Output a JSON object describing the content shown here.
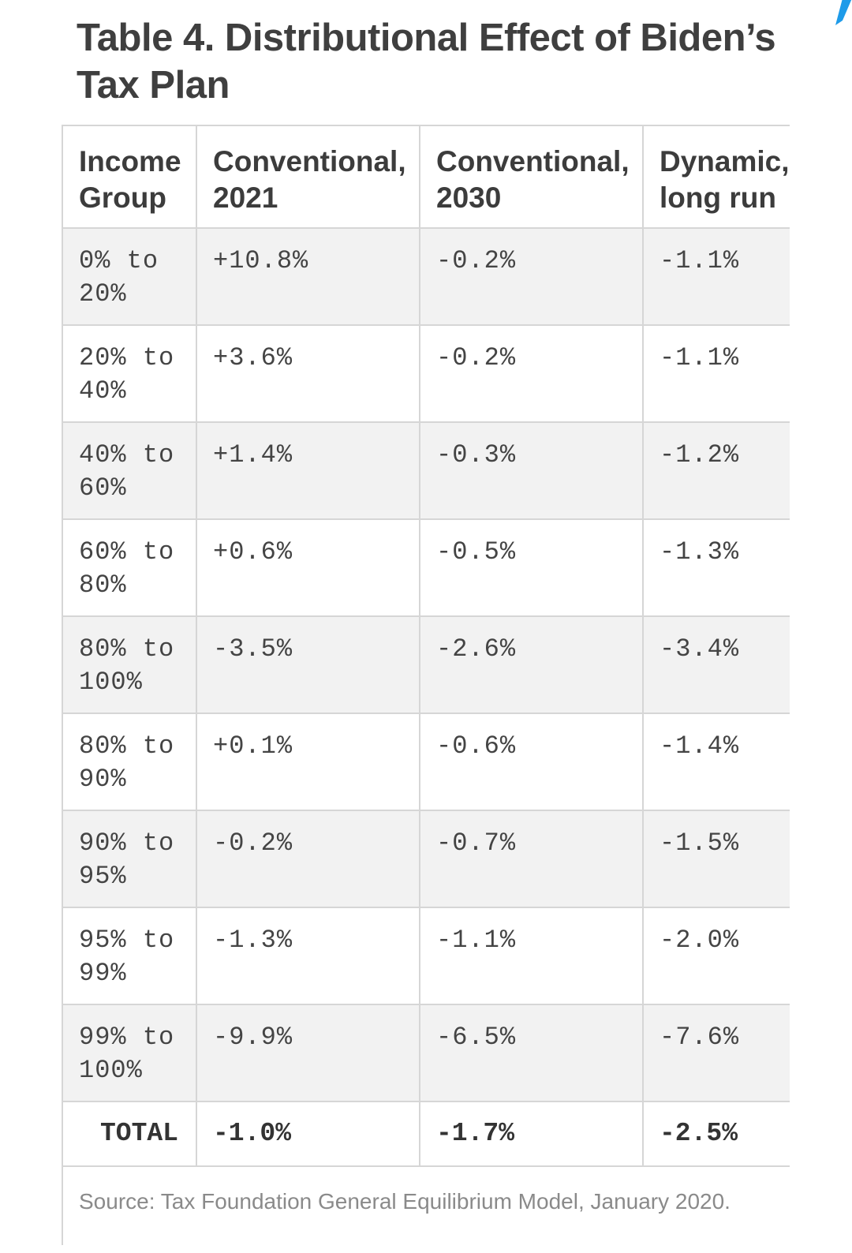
{
  "table": {
    "title": "Table 4. Distributional Effect of Biden’s Tax Plan",
    "headers": [
      "Income Group",
      "Conventional, 2021",
      "Conventional, 2030",
      "Dynamic, long run"
    ],
    "rows": [
      {
        "group": "0% to 20%",
        "conv_2021": "+10.8%",
        "conv_2030": "-0.2%",
        "dynamic": "-1.1%"
      },
      {
        "group": "20% to 40%",
        "conv_2021": "+3.6%",
        "conv_2030": "-0.2%",
        "dynamic": "-1.1%"
      },
      {
        "group": "40% to 60%",
        "conv_2021": "+1.4%",
        "conv_2030": "-0.3%",
        "dynamic": "-1.2%"
      },
      {
        "group": "60% to 80%",
        "conv_2021": "+0.6%",
        "conv_2030": "-0.5%",
        "dynamic": "-1.3%"
      },
      {
        "group": "80% to 100%",
        "conv_2021": "-3.5%",
        "conv_2030": "-2.6%",
        "dynamic": "-3.4%"
      },
      {
        "group": "80% to 90%",
        "conv_2021": "+0.1%",
        "conv_2030": "-0.6%",
        "dynamic": "-1.4%"
      },
      {
        "group": "90% to 95%",
        "conv_2021": "-0.2%",
        "conv_2030": "-0.7%",
        "dynamic": "-1.5%"
      },
      {
        "group": "95% to 99%",
        "conv_2021": "-1.3%",
        "conv_2030": "-1.1%",
        "dynamic": "-2.0%"
      },
      {
        "group": "99% to 100%",
        "conv_2021": "-9.9%",
        "conv_2030": "-6.5%",
        "dynamic": "-7.6%"
      }
    ],
    "total": {
      "label": "TOTAL",
      "conv_2021": "-1.0%",
      "conv_2030": "-1.7%",
      "dynamic": "-2.5%"
    },
    "source": "Source: Tax Foundation General Equilibrium Model, January 2020."
  },
  "colors": {
    "accent": "#1e9be9",
    "row_alt": "#f2f2f2",
    "border": "#d6d6d6",
    "source_text": "#8a8a8a"
  }
}
